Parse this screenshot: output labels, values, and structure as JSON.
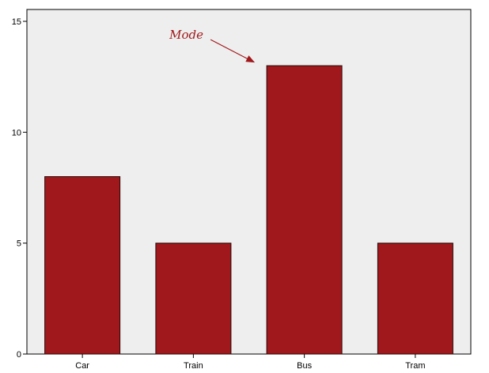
{
  "chart_data": {
    "type": "bar",
    "categories": [
      "Car",
      "Train",
      "Bus",
      "Tram"
    ],
    "values": [
      8,
      5,
      13,
      5
    ],
    "title": "",
    "xlabel": "",
    "ylabel": "",
    "ylim": [
      0,
      15
    ],
    "yticks": [
      0,
      5,
      10,
      15
    ],
    "grid": false,
    "legend": "none",
    "annotation": {
      "text": "Mode",
      "target_category": "Bus"
    },
    "colors": {
      "bar": "#a0181b",
      "bar_stroke": "#2a0808",
      "plot_background": "#eeeeee",
      "annotation": "#a0181b",
      "axis": "#000000"
    }
  }
}
